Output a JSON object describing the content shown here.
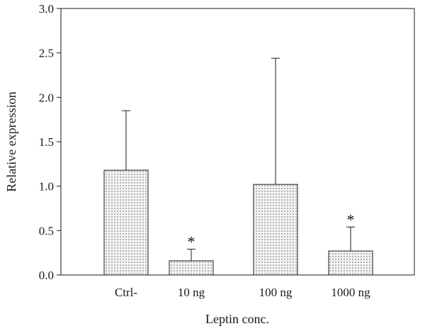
{
  "chart_data": {
    "type": "bar",
    "xlabel": "Leptin conc.",
    "ylabel": "Relative expression",
    "categories": [
      "Ctrl-",
      "10 ng",
      "100 ng",
      "1000 ng"
    ],
    "values": [
      1.18,
      0.16,
      1.02,
      0.27
    ],
    "error_upper": [
      1.85,
      0.29,
      2.44,
      0.54
    ],
    "annotations": [
      "",
      "*",
      "",
      "*"
    ],
    "ylim": [
      0,
      3.0
    ],
    "yticks": [
      "0.0",
      "0.5",
      "1.0",
      "1.5",
      "2.0",
      "2.5",
      "3.0"
    ],
    "grid": false,
    "legend": "none",
    "bar_pattern": "dotted",
    "colors": {
      "bar_fill": "#f4f4f4",
      "bar_dots": "#555555",
      "axis": "#1a1a1a"
    }
  }
}
